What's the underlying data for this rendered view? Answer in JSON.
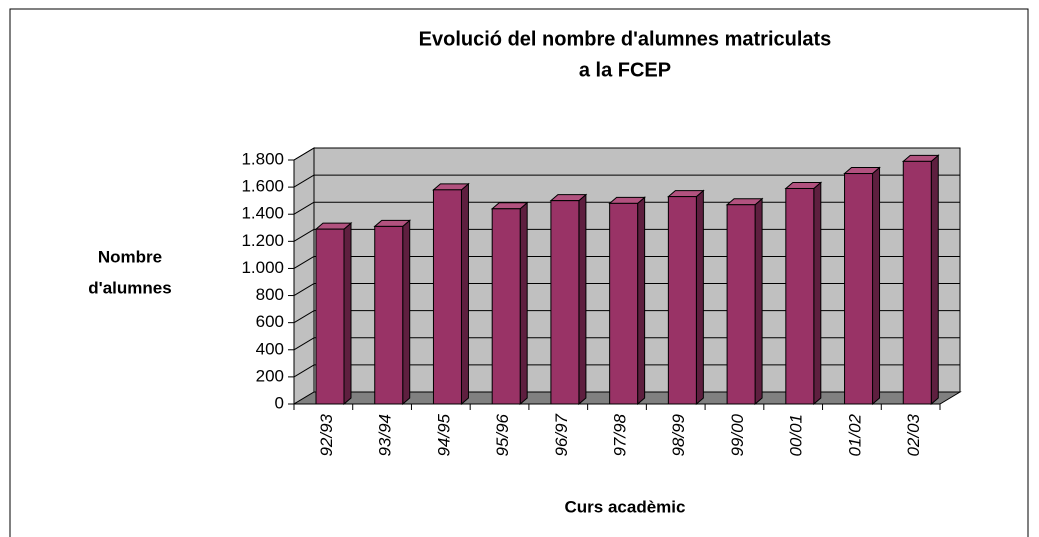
{
  "chart_data": {
    "type": "bar3d",
    "title": [
      "Evolució del nombre d'alumnes matriculats",
      "a la FCEP"
    ],
    "y_label": [
      "Nombre",
      "d'alumnes"
    ],
    "x_label": "Curs acadèmic",
    "categories": [
      "92/93",
      "93/94",
      "94/95",
      "95/96",
      "96/97",
      "97/98",
      "98/99",
      "99/00",
      "00/01",
      "01/02",
      "02/03"
    ],
    "values": [
      1290,
      1310,
      1580,
      1440,
      1500,
      1480,
      1530,
      1470,
      1590,
      1700,
      1790
    ],
    "color": "#993366",
    "ylim": [
      0,
      1800
    ],
    "yticks": [
      0,
      200,
      400,
      600,
      800,
      {
        "value": 1000,
        "label": "1.000"
      },
      {
        "value": 1200,
        "label": "1.200"
      },
      {
        "value": 1400,
        "label": "1.400"
      },
      {
        "value": 1600,
        "label": "1.600"
      },
      {
        "value": 1800,
        "label": "1.800"
      }
    ],
    "grid": true
  }
}
